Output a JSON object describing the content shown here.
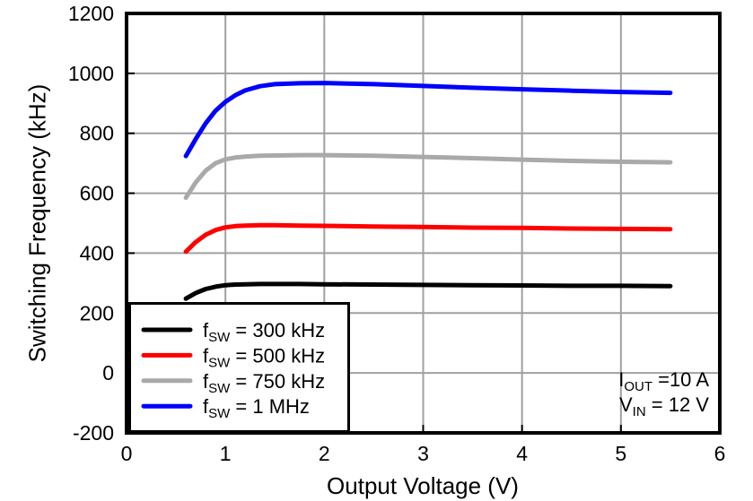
{
  "chart_data": {
    "type": "line",
    "title": "",
    "xlabel": "Output Voltage (V)",
    "ylabel": "Switching Frequency (kHz)",
    "xlim": [
      0,
      6
    ],
    "ylim": [
      -200,
      1200
    ],
    "xticks": [
      0,
      1,
      2,
      3,
      4,
      5,
      6
    ],
    "yticks": [
      -200,
      0,
      200,
      400,
      600,
      800,
      1000,
      1200
    ],
    "grid": true,
    "legend_position": "lower-left",
    "gridline_color": "#A0A0A0",
    "axis_color": "#000000",
    "x": [
      0.6,
      0.7,
      0.8,
      0.9,
      1.0,
      1.1,
      1.2,
      1.35,
      1.5,
      1.75,
      2.0,
      2.5,
      3.0,
      3.5,
      4.0,
      4.5,
      5.0,
      5.5
    ],
    "series": [
      {
        "name": "fSW = 300 kHz",
        "label_main": "f",
        "label_sub": "SW",
        "label_rest": " = 300 kHz",
        "color": "#000000",
        "values": [
          248,
          267,
          280,
          288,
          293,
          295,
          296,
          297,
          297,
          297,
          296,
          295,
          294,
          293,
          292,
          291,
          291,
          290
        ]
      },
      {
        "name": "fSW = 500 kHz",
        "label_main": "f",
        "label_sub": "SW",
        "label_rest": " = 500 kHz",
        "color": "#FF0000",
        "values": [
          405,
          437,
          461,
          477,
          486,
          490,
          492,
          493,
          493,
          492,
          491,
          489,
          487,
          485,
          484,
          482,
          481,
          480
        ]
      },
      {
        "name": "fSW = 750 kHz",
        "label_main": "f",
        "label_sub": "SW",
        "label_rest": " = 750 kHz",
        "color": "#A9A9A9",
        "values": [
          585,
          636,
          675,
          700,
          713,
          719,
          722,
          725,
          726,
          727,
          727,
          725,
          721,
          717,
          712,
          708,
          705,
          703
        ]
      },
      {
        "name": "fSW = 1 MHz",
        "label_main": "f",
        "label_sub": "SW",
        "label_rest": " = 1 MHz",
        "color": "#0000FF",
        "values": [
          724,
          781,
          833,
          875,
          905,
          927,
          943,
          957,
          964,
          967,
          968,
          964,
          958,
          952,
          947,
          942,
          938,
          935
        ]
      }
    ],
    "annotation": [
      {
        "main": "I",
        "sub": "OUT",
        "rest": " =10 A"
      },
      {
        "main": "V",
        "sub": "IN",
        "rest": " = 12 V"
      }
    ]
  }
}
